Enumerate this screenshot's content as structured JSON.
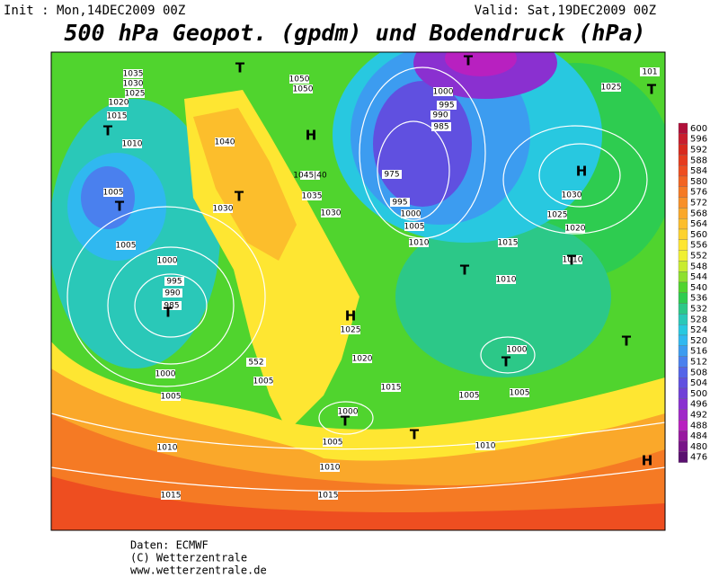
{
  "header": {
    "init": "Init : Mon,14DEC2009 00Z",
    "valid": "Valid: Sat,19DEC2009 00Z",
    "title": "500 hPa Geopot. (gpdm) und Bodendruck (hPa)"
  },
  "legend": {
    "levels": [
      600,
      596,
      592,
      588,
      584,
      580,
      576,
      572,
      568,
      564,
      560,
      556,
      552,
      548,
      544,
      540,
      536,
      532,
      528,
      524,
      520,
      516,
      512,
      508,
      504,
      500,
      496,
      492,
      488,
      484,
      480,
      476
    ],
    "colors": [
      "#b0103a",
      "#c81e2e",
      "#d82a1e",
      "#e63c1e",
      "#ee4e20",
      "#f26422",
      "#f57a24",
      "#f89028",
      "#faa82a",
      "#fcbe2c",
      "#fdd22e",
      "#fee632",
      "#f0f032",
      "#c8ec30",
      "#8ee02e",
      "#50d42e",
      "#2ecc50",
      "#2cc888",
      "#2ac8b8",
      "#28c8e0",
      "#30b8f0",
      "#3c9cf0",
      "#4a80ee",
      "#5464e8",
      "#6050e0",
      "#7040d8",
      "#8a30d0",
      "#a028c8",
      "#b820c0",
      "#9818a0",
      "#781488",
      "#5a1070"
    ]
  },
  "map_labels": [
    "1035",
    "1030",
    "1025",
    "1020",
    "1015",
    "1010",
    "1005",
    "T",
    "1005",
    "1000",
    "995",
    "990",
    "985",
    "T",
    "1000",
    "1005",
    "1010",
    "1015",
    "1040",
    "1030",
    "T",
    "1050",
    "1050",
    "H",
    "1045|40",
    "1035",
    "1030",
    "T",
    "1000",
    "995",
    "990",
    "985",
    "975",
    "995",
    "1000",
    "1005",
    "1010",
    "1015",
    "1025",
    "H",
    "1030",
    "1025",
    "1020",
    "1010",
    "1010",
    "1025",
    "1020",
    "1015",
    "1005",
    "1000",
    "T",
    "1005",
    "T",
    "1010",
    "1015",
    "1010",
    "1005",
    "1005",
    "1000",
    "T",
    "H",
    "H",
    "552",
    "101",
    "T",
    "T",
    "T",
    "T",
    "T",
    "T"
  ],
  "credits": [
    "Daten: ECMWF",
    "(C) Wetterzentrale",
    "www.wetterzentrale.de"
  ]
}
